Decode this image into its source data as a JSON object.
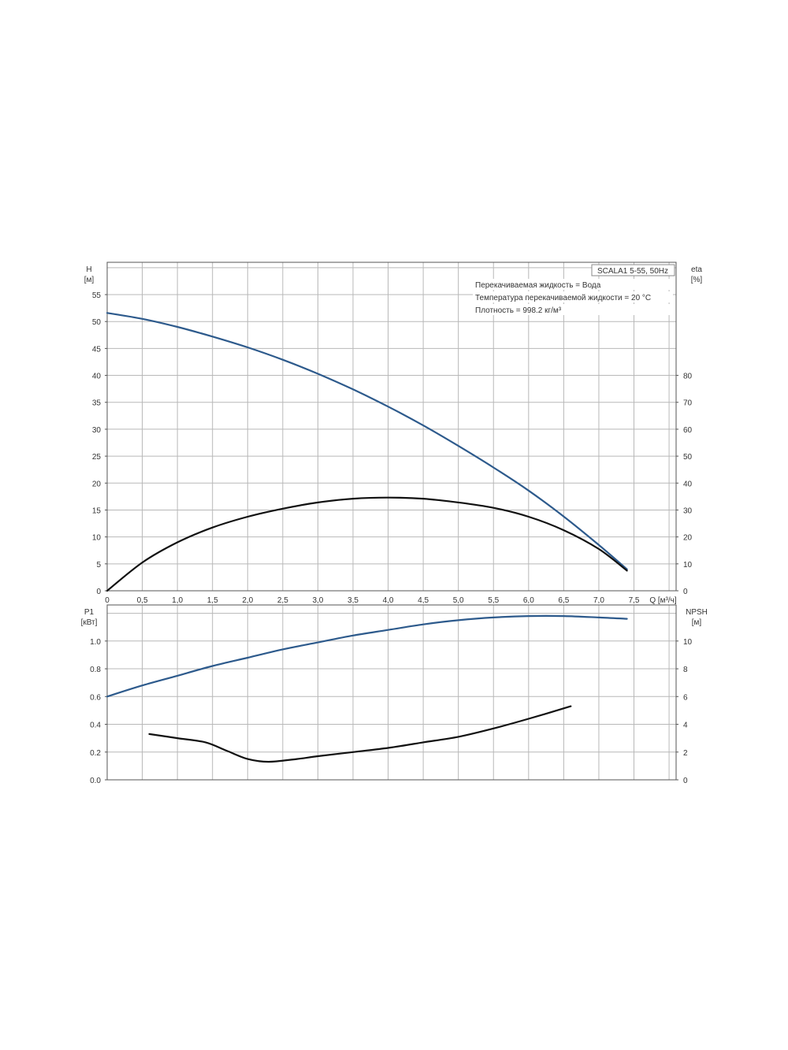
{
  "colors": {
    "head_curve": "#2d5a8c",
    "eff_curve": "#111111",
    "power_curve": "#2d5a8c",
    "npsh_curve": "#111111",
    "grid": "#b8b8b8",
    "frame": "#555555"
  },
  "chart_data": [
    {
      "type": "line",
      "id": "top",
      "title": "SCALA1 5-55, 50Hz",
      "notes": [
        "Перекачиваемая жидкость = Вода",
        "Температура перекачиваемой жидкости = 20 °C",
        "Плотность = 998.2 кг/м³"
      ],
      "xlabel": "Q [м³/ч]",
      "x_ticks": [
        "0",
        "0,5",
        "1,0",
        "1,5",
        "2,0",
        "2,5",
        "3,0",
        "3,5",
        "4,0",
        "4,5",
        "5,0",
        "5,5",
        "6,0",
        "6,5",
        "7,0",
        "7,5"
      ],
      "xlim": [
        0,
        8.1
      ],
      "y_left": {
        "label_top": "H",
        "label_unit": "[м]",
        "lim": [
          0,
          61
        ],
        "ticks": [
          0,
          5,
          10,
          15,
          20,
          25,
          30,
          35,
          40,
          45,
          50,
          55
        ]
      },
      "y_right": {
        "label_top": "eta",
        "label_unit": "[%]",
        "lim": [
          0,
          122
        ],
        "ticks": [
          0,
          10,
          20,
          30,
          40,
          50,
          60,
          70,
          80
        ]
      },
      "series": [
        {
          "axis": "left",
          "color": "#2d5a8c",
          "x": [
            0,
            0.5,
            1.0,
            1.5,
            2.0,
            2.5,
            3.0,
            3.5,
            4.0,
            4.5,
            5.0,
            5.5,
            6.0,
            6.5,
            7.0,
            7.4
          ],
          "y": [
            51.6,
            50.5,
            49.0,
            47.2,
            45.2,
            42.9,
            40.3,
            37.4,
            34.2,
            30.7,
            26.9,
            22.9,
            18.6,
            13.8,
            8.5,
            4.0
          ]
        },
        {
          "axis": "right",
          "color": "#111111",
          "x": [
            0,
            0.5,
            1.0,
            1.5,
            2.0,
            2.5,
            3.0,
            3.5,
            4.0,
            4.5,
            5.0,
            5.5,
            6.0,
            6.5,
            7.0,
            7.4
          ],
          "y": [
            0,
            10.5,
            18,
            23.5,
            27.5,
            30.5,
            32.8,
            34.2,
            34.6,
            34.2,
            32.8,
            30.8,
            27.5,
            22.5,
            15.5,
            7.5
          ]
        }
      ]
    },
    {
      "type": "line",
      "id": "bottom",
      "xlim": [
        0,
        8.1
      ],
      "y_left": {
        "label_top": "P1",
        "label_unit": "[кВт]",
        "lim": [
          0,
          1.26
        ],
        "ticks": [
          "0.0",
          "0.2",
          "0.4",
          "0.6",
          "0.8",
          "1.0"
        ]
      },
      "y_right": {
        "label_top": "NPSH",
        "label_unit": "[м]",
        "lim": [
          0,
          12.6
        ],
        "ticks": [
          "0",
          "2",
          "4",
          "6",
          "8",
          "10"
        ]
      },
      "series": [
        {
          "axis": "left",
          "color": "#2d5a8c",
          "x": [
            0,
            0.5,
            1.0,
            1.5,
            2.0,
            2.5,
            3.0,
            3.5,
            4.0,
            4.5,
            5.0,
            5.5,
            6.0,
            6.5,
            7.0,
            7.4
          ],
          "y": [
            0.6,
            0.68,
            0.75,
            0.82,
            0.88,
            0.94,
            0.99,
            1.04,
            1.08,
            1.12,
            1.15,
            1.17,
            1.18,
            1.18,
            1.17,
            1.16
          ]
        },
        {
          "axis": "right",
          "color": "#111111",
          "x": [
            0.6,
            1.0,
            1.4,
            1.7,
            2.0,
            2.3,
            2.7,
            3.0,
            3.5,
            4.0,
            4.5,
            5.0,
            5.5,
            6.0,
            6.6
          ],
          "y": [
            3.3,
            3.0,
            2.7,
            2.1,
            1.5,
            1.3,
            1.5,
            1.7,
            2.0,
            2.3,
            2.7,
            3.1,
            3.7,
            4.4,
            5.3
          ]
        }
      ]
    }
  ]
}
